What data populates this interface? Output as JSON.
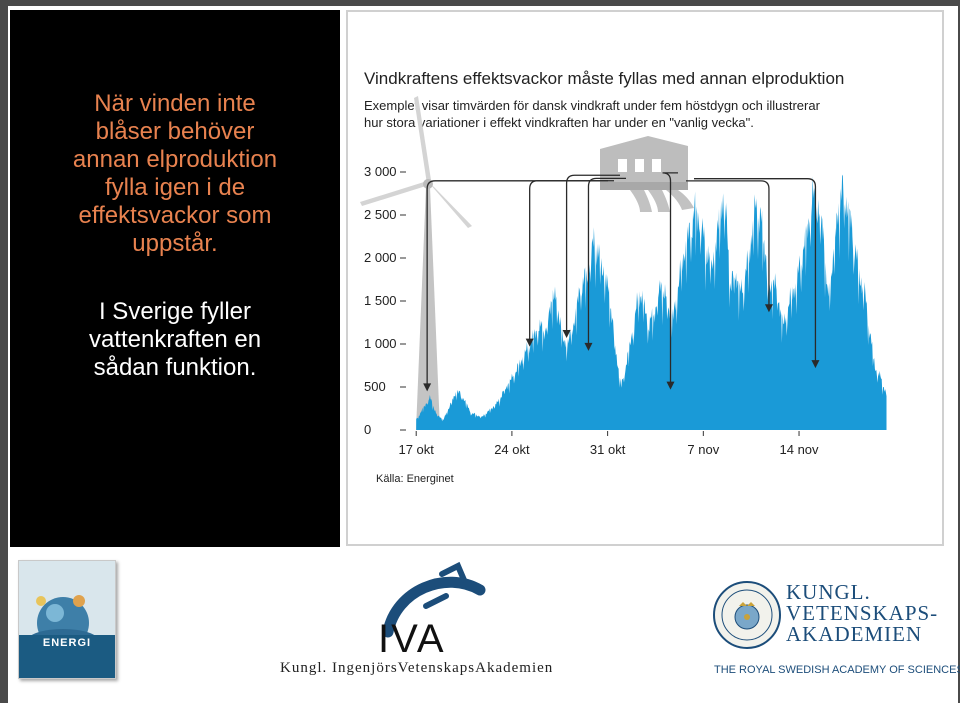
{
  "left_panel": {
    "paragraph1_lines": [
      "När vinden inte",
      "blåser behöver",
      "annan elproduktion",
      "fylla igen i de",
      "effektsvackor som",
      "uppstår."
    ],
    "paragraph2_lines": [
      "I Sverige fyller",
      "vattenkraften en",
      "sådan funktion."
    ]
  },
  "chart_data": {
    "type": "area",
    "title": "Vindkraftens effektsvackor måste fyllas med annan elproduktion",
    "subtitle_lines": [
      "Exemplet visar timvärden för dansk vindkraft under fem höstdygn och illustrerar",
      "hur stora variationer i effekt vindkraften har under en \"vanlig vecka\"."
    ],
    "y_ticks": [
      {
        "value": 0,
        "label": "0"
      },
      {
        "value": 500,
        "label": "500"
      },
      {
        "value": 1000,
        "label": "1 000"
      },
      {
        "value": 1500,
        "label": "1 500"
      },
      {
        "value": 2000,
        "label": "2 000"
      },
      {
        "value": 2500,
        "label": "2 500"
      },
      {
        "value": 3000,
        "label": "3 000"
      }
    ],
    "ylim": [
      0,
      3000
    ],
    "x_ticks": [
      {
        "day": 0,
        "label": "17 okt"
      },
      {
        "day": 7,
        "label": "24 okt"
      },
      {
        "day": 14,
        "label": "31 okt"
      },
      {
        "day": 21,
        "label": "7 nov"
      },
      {
        "day": 28,
        "label": "14 nov"
      }
    ],
    "xlim": [
      -0.6,
      34.8
    ],
    "grid": false,
    "source": "Källa: Energinet",
    "series_color": "#1a9ad7",
    "profile": [
      [
        0.0,
        120
      ],
      [
        0.5,
        250
      ],
      [
        1.0,
        380
      ],
      [
        1.5,
        180
      ],
      [
        2.0,
        120
      ],
      [
        2.5,
        300
      ],
      [
        3.0,
        460
      ],
      [
        3.5,
        360
      ],
      [
        4.0,
        200
      ],
      [
        4.8,
        150
      ],
      [
        5.5,
        250
      ],
      [
        6.0,
        330
      ],
      [
        6.5,
        480
      ],
      [
        7.0,
        600
      ],
      [
        7.5,
        750
      ],
      [
        8.0,
        900
      ],
      [
        8.6,
        1100
      ],
      [
        9.0,
        1200
      ],
      [
        9.5,
        1150
      ],
      [
        10.0,
        1600
      ],
      [
        10.4,
        1400
      ],
      [
        10.8,
        1000
      ],
      [
        11.2,
        1050
      ],
      [
        11.6,
        1300
      ],
      [
        12.0,
        1650
      ],
      [
        12.5,
        1800
      ],
      [
        13.0,
        2200
      ],
      [
        13.4,
        2000
      ],
      [
        13.8,
        1800
      ],
      [
        14.2,
        1500
      ],
      [
        14.6,
        900
      ],
      [
        15.0,
        500
      ],
      [
        15.4,
        800
      ],
      [
        15.9,
        1200
      ],
      [
        16.3,
        1600
      ],
      [
        16.6,
        1500
      ],
      [
        17.0,
        1200
      ],
      [
        17.5,
        1400
      ],
      [
        17.9,
        1700
      ],
      [
        18.3,
        1500
      ],
      [
        18.8,
        1300
      ],
      [
        19.2,
        1700
      ],
      [
        19.5,
        2000
      ],
      [
        20.0,
        2300
      ],
      [
        20.4,
        2550
      ],
      [
        20.8,
        2400
      ],
      [
        21.2,
        2100
      ],
      [
        21.6,
        1900
      ],
      [
        22.0,
        2200
      ],
      [
        22.3,
        2650
      ],
      [
        22.7,
        2500
      ],
      [
        23.0,
        1600
      ],
      [
        23.3,
        1900
      ],
      [
        23.6,
        1600
      ],
      [
        24.0,
        1700
      ],
      [
        24.4,
        2100
      ],
      [
        24.8,
        2600
      ],
      [
        25.2,
        2450
      ],
      [
        25.6,
        2000
      ],
      [
        25.8,
        1500
      ],
      [
        26.1,
        1800
      ],
      [
        26.5,
        1500
      ],
      [
        26.9,
        1200
      ],
      [
        27.3,
        1500
      ],
      [
        27.8,
        1700
      ],
      [
        28.2,
        2000
      ],
      [
        28.6,
        2300
      ],
      [
        29.0,
        2700
      ],
      [
        29.4,
        2550
      ],
      [
        29.8,
        2300
      ],
      [
        30.1,
        1500
      ],
      [
        30.5,
        2000
      ],
      [
        30.9,
        2600
      ],
      [
        31.2,
        2800
      ],
      [
        31.6,
        2550
      ],
      [
        32.0,
        2200
      ],
      [
        32.4,
        1800
      ],
      [
        32.8,
        1600
      ],
      [
        33.2,
        1100
      ],
      [
        33.6,
        700
      ],
      [
        34.0,
        600
      ],
      [
        34.4,
        400
      ]
    ],
    "arrow_targets": [
      {
        "day": 0.8,
        "value": 380
      },
      {
        "day": 8.3,
        "value": 900
      },
      {
        "day": 11.0,
        "value": 1000
      },
      {
        "day": 12.6,
        "value": 850
      },
      {
        "day": 18.6,
        "value": 400
      },
      {
        "day": 25.8,
        "value": 1300
      },
      {
        "day": 29.2,
        "value": 650
      }
    ]
  },
  "footer": {
    "energi_cover_title": "ENERGI",
    "iva_mark": "IVA",
    "iva_name": "Kungl. IngenjörsVetenskapsAkademien",
    "kva_name_lines": [
      "KUNGL.",
      "VETENSKAPS-",
      "AKADEMIEN"
    ],
    "kva_english": "THE ROYAL SWEDISH ACADEMY OF SCIENCES",
    "brand_color": "#1c4d7a"
  }
}
